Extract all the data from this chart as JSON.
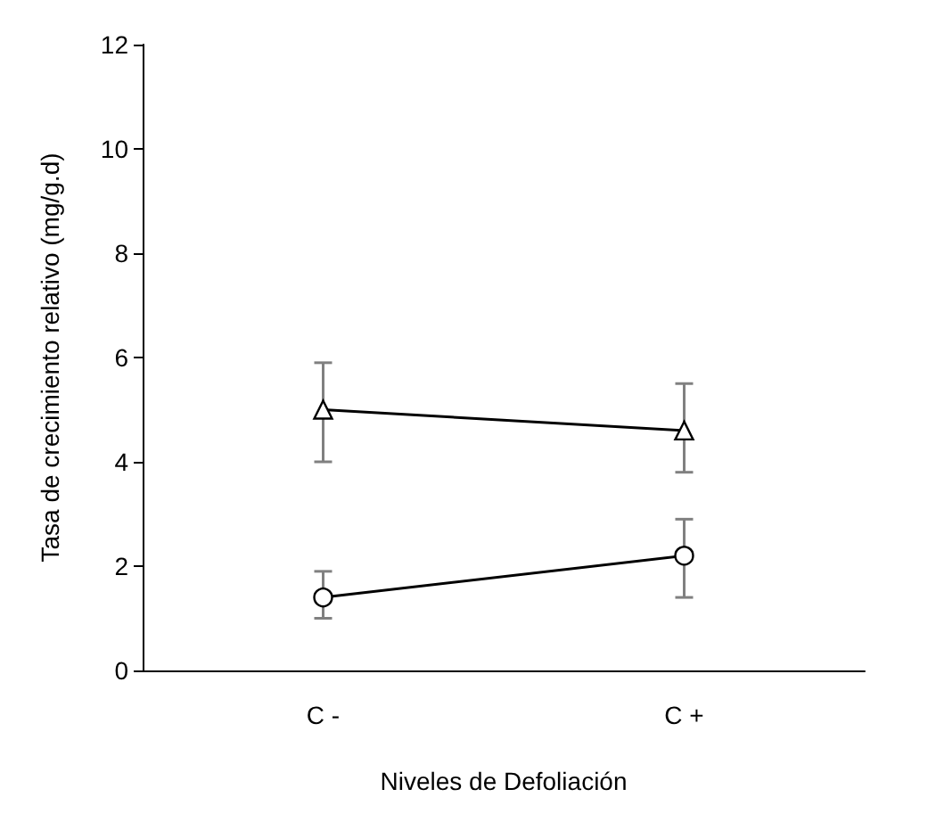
{
  "chart_data": {
    "type": "line",
    "xlabel": "Niveles de Defoliación",
    "ylabel": "Tasa de crecimiento relativo (mg/g.d)",
    "categories": [
      "C -",
      "C +"
    ],
    "series": [
      {
        "color": "#000000",
        "marker": "triangle",
        "values": [
          5.0,
          4.6
        ],
        "errors": [
          [
            4.0,
            5.9
          ],
          [
            3.8,
            5.5
          ]
        ]
      },
      {
        "color": "#000000",
        "marker": "circle",
        "values": [
          1.4,
          2.2
        ],
        "errors": [
          [
            1.0,
            1.9
          ],
          [
            1.4,
            2.9
          ]
        ]
      }
    ],
    "ylim": [
      0,
      12
    ],
    "yticks": [
      0,
      2,
      4,
      6,
      8,
      10,
      12
    ],
    "grid": false,
    "line_style": "solid"
  }
}
